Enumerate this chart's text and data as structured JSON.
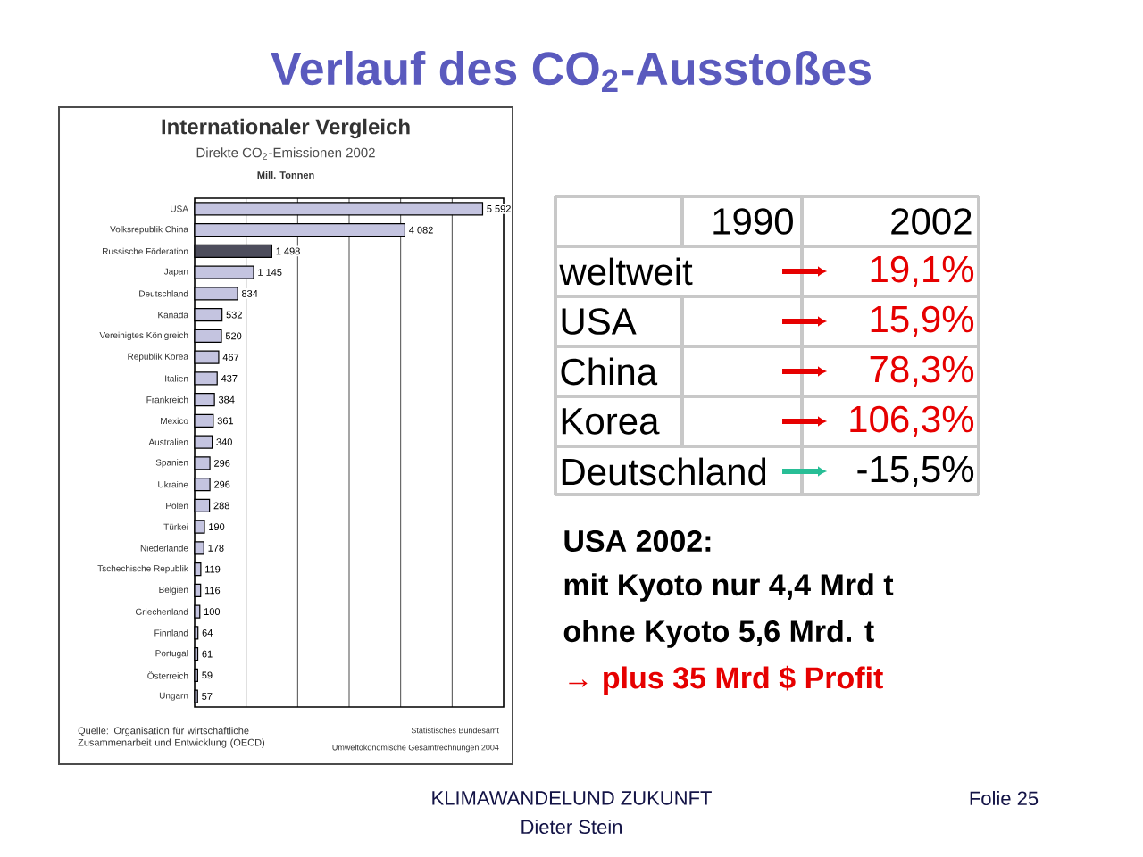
{
  "chart_data": [
    {
      "type": "bar",
      "orientation": "horizontal",
      "title": "Internationaler Vergleich",
      "subtitle": "Direkte CO$_{2}$-Emissionen 2002",
      "categories": [
        "USA",
        "Volksrepublik China",
        "Russische Föderation",
        "Japan",
        "Deutschland",
        "Kanada",
        "Vereinigtes Königreich",
        "Republik Korea",
        "Italien",
        "Frankreich",
        "Mexico",
        "Australien",
        "Spanien",
        "Ukraine",
        "Polen",
        "Türkei",
        "Niederlande",
        "Tschechische Republik",
        "Belgien",
        "Griechenland",
        "Finnland",
        "Portugal",
        "Österreich",
        "Ungarn"
      ],
      "values": [
        5592,
        4082,
        1498,
        1145,
        834,
        532,
        520,
        467,
        437,
        384,
        361,
        340,
        296,
        296,
        288,
        190,
        178,
        119,
        116,
        100,
        64,
        61,
        59,
        57
      ],
      "value_labels": [
        "5 592",
        "4 082",
        "1 498",
        "1 145",
        "834",
        "532",
        "520",
        "467",
        "437",
        "384",
        "361",
        "340",
        "296",
        "296",
        "288",
        "190",
        "178",
        "119",
        "116",
        "100",
        "64",
        "61",
        "59",
        "57"
      ],
      "colors": [
        "#c4c4e0",
        "#c4c4e0",
        "#4d4d5c",
        "#c4c4e0",
        "#c4c4e0",
        "#c4c4e0",
        "#c4c4e0",
        "#c4c4e0",
        "#c4c4e0",
        "#c4c4e0",
        "#c4c4e0",
        "#c4c4e0",
        "#c4c4e0",
        "#c4c4e0",
        "#c4c4e0",
        "#c4c4e0",
        "#c4c4e0",
        "#c4c4e0",
        "#c4c4e0",
        "#c4c4e0",
        "#c4c4e0",
        "#c4c4e0",
        "#c4c4e0",
        "#c4c4e0"
      ],
      "xlim": [
        0,
        6000
      ],
      "xticks": [
        {
          "value": 1000,
          "label": null
        },
        {
          "value": 2000,
          "label": null
        },
        {
          "value": 3000,
          "label": null
        },
        {
          "value": 4000,
          "label": null
        },
        {
          "value": 5000,
          "label": null
        }
      ],
      "grid": "x",
      "tick_labels": "y",
      "annotations": [
        "Mill. Tonnen",
        "Quelle: Organisation für wirtschaftliche Zusammenarbeit und Entwicklung (OECD)",
        "Statistisches Bundesamt",
        "Umweltökonomische Gesamtrechnungen 2004"
      ]
    },
    {
      "type": "other",
      "title": "Verlauf des CO$_{2}$-Ausstoßes",
      "annotations": [
        "1990",
        "2002",
        "weltweit",
        "19,1%",
        "USA",
        "15,9%",
        "China",
        "78,3%",
        "Korea",
        "106,3%",
        "Deutschland",
        "-15,5%",
        "USA 2002:",
        "mit Kyoto nur 4,4 Mrd t",
        "ohne Kyoto 5,6 Mrd. t",
        "→ plus 35 Mrd $ Profit",
        "KLIMAWANDELUND ZUKUNFT",
        "Dieter Stein",
        "Folie 25"
      ]
    }
  ]
}
